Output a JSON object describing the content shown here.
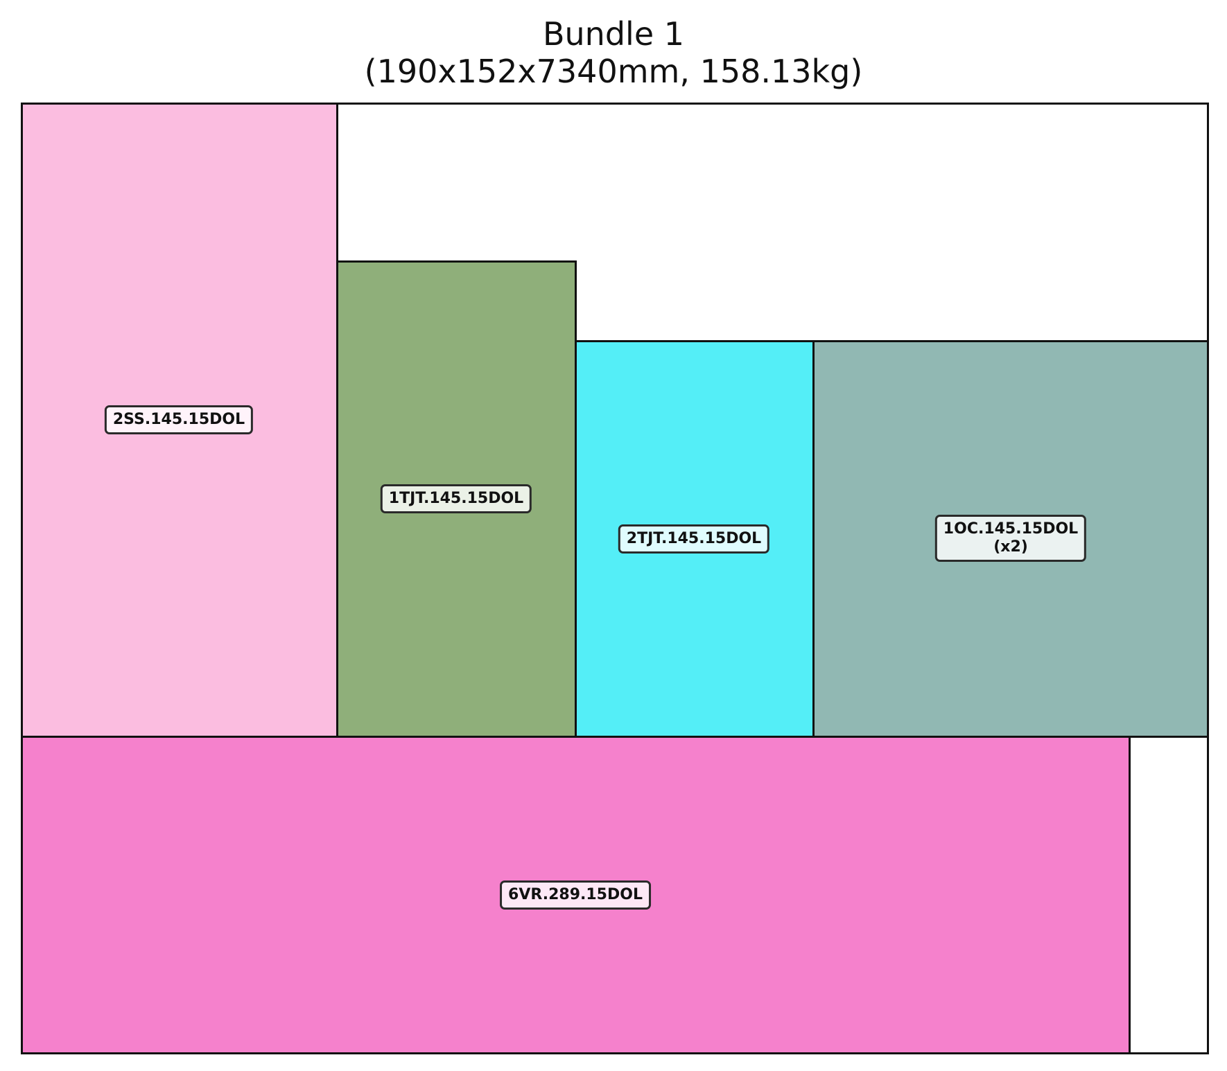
{
  "title": {
    "line1": "Bundle 1",
    "line2": "(190x152x7340mm, 158.13kg)"
  },
  "pieces": [
    {
      "name": "2SS.145.15DOL",
      "qty": "",
      "color": "#fbbde0"
    },
    {
      "name": "1TJT.145.15DOL",
      "qty": "",
      "color": "#8faf7a"
    },
    {
      "name": "2TJT.145.15DOL",
      "qty": "",
      "color": "#54eef7"
    },
    {
      "name": "1OC.145.15DOL",
      "qty": "(x2)",
      "color": "#91b8b3"
    },
    {
      "name": "6VR.289.15DOL",
      "qty": "",
      "color": "#f581cc"
    }
  ]
}
